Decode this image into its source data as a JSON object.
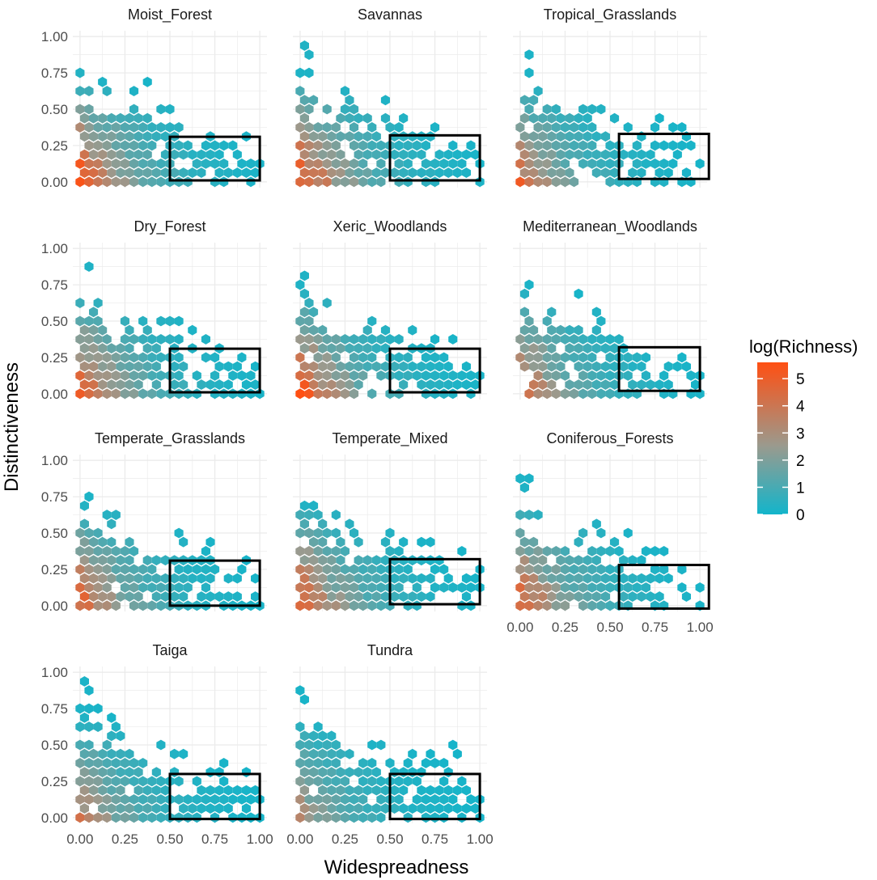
{
  "chart_data": {
    "type": "hexbin",
    "xlabel": "Widespreadness",
    "ylabel": "Distinctiveness",
    "xlim": [
      0,
      1
    ],
    "ylim": [
      0,
      1
    ],
    "x_ticks": [
      "0.00",
      "0.25",
      "0.50",
      "0.75",
      "1.00"
    ],
    "y_ticks": [
      "0.00",
      "0.25",
      "0.50",
      "0.75",
      "1.00"
    ],
    "grid": true,
    "legend": {
      "title": "log(Richness)",
      "position": "right",
      "ticks": [
        "0",
        "1",
        "2",
        "3",
        "4",
        "5"
      ],
      "range": [
        0,
        5.6
      ],
      "low_color": "#12B5CB",
      "mid_color": "#9A9A8E",
      "high_color": "#FF4F12"
    },
    "facets": [
      {
        "title": "Moist_Forest",
        "highlight": {
          "x": [
            0.5,
            1.0
          ],
          "y": [
            0.01,
            0.31
          ]
        },
        "seed": 11,
        "peak": 5.5
      },
      {
        "title": "Savannas",
        "highlight": {
          "x": [
            0.5,
            1.0
          ],
          "y": [
            0.01,
            0.32
          ]
        },
        "seed": 23,
        "peak": 5.6
      },
      {
        "title": "Tropical_Grasslands",
        "highlight": {
          "x": [
            0.55,
            1.05
          ],
          "y": [
            0.02,
            0.33
          ]
        },
        "seed": 37,
        "peak": 4.4
      },
      {
        "title": "Dry_Forest",
        "highlight": {
          "x": [
            0.5,
            1.0
          ],
          "y": [
            0.01,
            0.31
          ]
        },
        "seed": 41,
        "peak": 5.2
      },
      {
        "title": "Xeric_Woodlands",
        "highlight": {
          "x": [
            0.5,
            1.0
          ],
          "y": [
            0.01,
            0.31
          ]
        },
        "seed": 53,
        "peak": 5.4
      },
      {
        "title": "Mediterranean_Woodlands",
        "highlight": {
          "x": [
            0.55,
            1.0
          ],
          "y": [
            0.02,
            0.32
          ]
        },
        "seed": 67,
        "peak": 4.8
      },
      {
        "title": "Temperate_Grasslands",
        "highlight": {
          "x": [
            0.5,
            1.0
          ],
          "y": [
            0.0,
            0.31
          ]
        },
        "seed": 71,
        "peak": 4.9
      },
      {
        "title": "Temperate_Mixed",
        "highlight": {
          "x": [
            0.5,
            1.0
          ],
          "y": [
            0.01,
            0.32
          ]
        },
        "seed": 83,
        "peak": 5.1
      },
      {
        "title": "Coniferous_Forests",
        "highlight": {
          "x": [
            0.55,
            1.05
          ],
          "y": [
            -0.02,
            0.28
          ]
        },
        "seed": 97,
        "peak": 5.0
      },
      {
        "title": "Taiga",
        "highlight": {
          "x": [
            0.5,
            1.0
          ],
          "y": [
            -0.01,
            0.3
          ]
        },
        "seed": 101,
        "peak": 3.9
      },
      {
        "title": "Tundra",
        "highlight": {
          "x": [
            0.5,
            1.0
          ],
          "y": [
            -0.01,
            0.3
          ]
        },
        "seed": 113,
        "peak": 3.2
      }
    ]
  }
}
